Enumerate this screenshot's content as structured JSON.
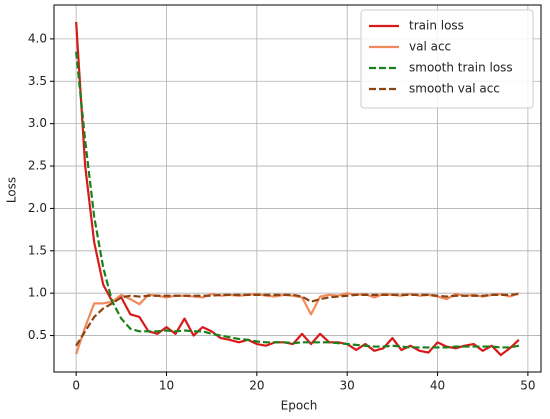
{
  "chart_data": {
    "type": "line",
    "x_label": "Epoch",
    "y_label": "Loss",
    "x": [
      0,
      1,
      2,
      3,
      4,
      5,
      6,
      7,
      8,
      9,
      10,
      11,
      12,
      13,
      14,
      15,
      16,
      17,
      18,
      19,
      20,
      21,
      22,
      23,
      24,
      25,
      26,
      27,
      28,
      29,
      30,
      31,
      32,
      33,
      34,
      35,
      36,
      37,
      38,
      39,
      40,
      41,
      42,
      43,
      44,
      45,
      46,
      47,
      48,
      49
    ],
    "series": [
      {
        "name": "train loss",
        "color": "#d91a1a",
        "linestyle": "solid",
        "values": [
          4.2,
          2.5,
          1.6,
          1.1,
          0.9,
          0.95,
          0.75,
          0.72,
          0.55,
          0.52,
          0.6,
          0.52,
          0.7,
          0.5,
          0.6,
          0.55,
          0.47,
          0.45,
          0.42,
          0.45,
          0.4,
          0.38,
          0.42,
          0.42,
          0.4,
          0.52,
          0.4,
          0.52,
          0.42,
          0.42,
          0.4,
          0.33,
          0.4,
          0.32,
          0.35,
          0.47,
          0.33,
          0.38,
          0.32,
          0.3,
          0.42,
          0.37,
          0.35,
          0.38,
          0.4,
          0.32,
          0.38,
          0.27,
          0.35,
          0.45
        ]
      },
      {
        "name": "val acc",
        "color": "#f08a5d",
        "linestyle": "solid",
        "values": [
          0.28,
          0.6,
          0.88,
          0.88,
          0.9,
          0.98,
          0.93,
          0.87,
          0.98,
          0.97,
          0.95,
          0.97,
          0.97,
          0.96,
          0.95,
          0.99,
          0.97,
          0.98,
          0.97,
          0.98,
          0.99,
          0.97,
          0.96,
          0.98,
          0.97,
          0.95,
          0.75,
          0.96,
          0.98,
          0.97,
          1.0,
          0.98,
          0.99,
          0.95,
          0.99,
          0.98,
          0.97,
          0.99,
          0.97,
          0.98,
          0.96,
          0.93,
          0.99,
          0.97,
          0.98,
          0.96,
          0.98,
          0.99,
          0.96,
          1.0
        ]
      },
      {
        "name": "smooth train loss",
        "color": "#1a801a",
        "linestyle": "dashed",
        "values": [
          3.85,
          2.8,
          1.9,
          1.3,
          0.9,
          0.7,
          0.58,
          0.55,
          0.55,
          0.55,
          0.56,
          0.55,
          0.56,
          0.55,
          0.55,
          0.52,
          0.5,
          0.48,
          0.46,
          0.45,
          0.43,
          0.42,
          0.42,
          0.42,
          0.41,
          0.42,
          0.42,
          0.42,
          0.42,
          0.41,
          0.4,
          0.39,
          0.38,
          0.37,
          0.37,
          0.38,
          0.37,
          0.36,
          0.36,
          0.36,
          0.36,
          0.36,
          0.37,
          0.37,
          0.37,
          0.37,
          0.37,
          0.36,
          0.36,
          0.38
        ]
      },
      {
        "name": "smooth val acc",
        "color": "#8b4513",
        "linestyle": "dashed",
        "values": [
          0.38,
          0.55,
          0.72,
          0.82,
          0.88,
          0.95,
          0.97,
          0.96,
          0.97,
          0.97,
          0.97,
          0.97,
          0.97,
          0.97,
          0.97,
          0.97,
          0.98,
          0.98,
          0.98,
          0.98,
          0.98,
          0.98,
          0.98,
          0.98,
          0.98,
          0.96,
          0.9,
          0.93,
          0.95,
          0.96,
          0.97,
          0.98,
          0.98,
          0.98,
          0.98,
          0.98,
          0.98,
          0.98,
          0.98,
          0.98,
          0.97,
          0.96,
          0.97,
          0.97,
          0.97,
          0.97,
          0.98,
          0.98,
          0.98,
          0.99
        ]
      }
    ],
    "xlim": [
      -2.45,
      51.45
    ],
    "xticks": [
      0,
      10,
      20,
      30,
      40,
      50
    ],
    "ylim": [
      0.07,
      4.4
    ],
    "yticks": [
      0.5,
      {
        "value": 1,
        "label": "1.0"
      },
      1.5,
      {
        "value": 2,
        "label": "2.0"
      },
      2.5,
      {
        "value": 3,
        "label": "3.0"
      },
      3.5,
      {
        "value": 4,
        "label": "4.0"
      }
    ],
    "grid": true,
    "legend": "upper right"
  }
}
